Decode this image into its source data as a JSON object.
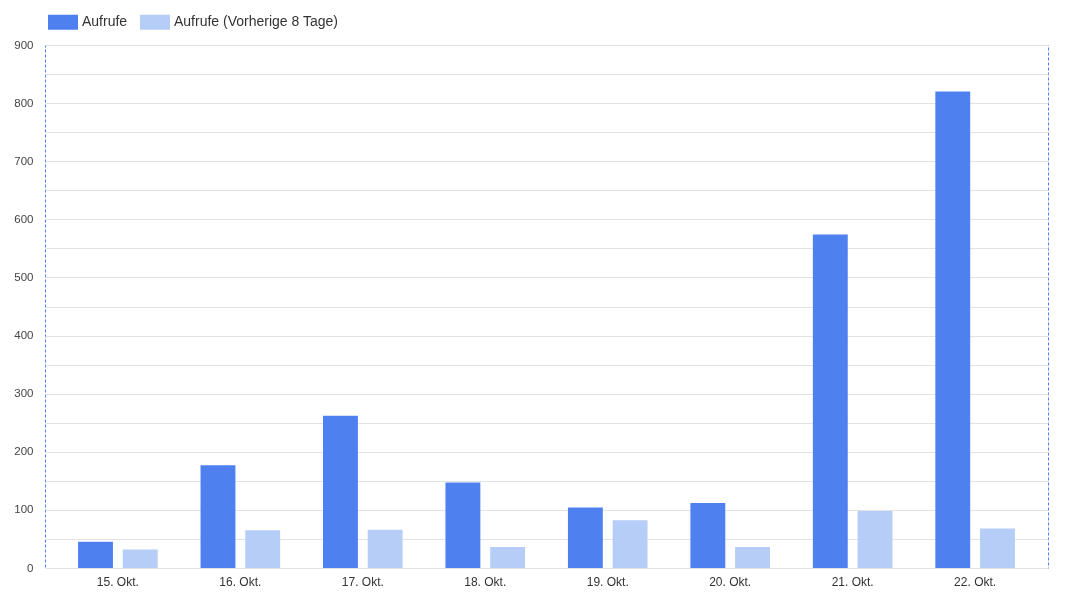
{
  "chart_data": {
    "type": "bar",
    "categories": [
      "15. Okt.",
      "16. Okt.",
      "17. Okt.",
      "18. Okt.",
      "19. Okt.",
      "20. Okt.",
      "21. Okt.",
      "22. Okt."
    ],
    "series": [
      {
        "name": "Aufrufe",
        "color": "#4f80f0",
        "values": [
          45,
          177,
          262,
          147,
          104,
          112,
          574,
          820
        ]
      },
      {
        "name": "Aufrufe (Vorherige 8 Tage)",
        "color": "#b6cdf8",
        "values": [
          32,
          65,
          66,
          36,
          82,
          36,
          98,
          68
        ]
      }
    ],
    "ylim": [
      0,
      900
    ],
    "yticks": [
      0,
      {
        "value": 50,
        "label": null
      },
      100,
      {
        "value": 150,
        "label": null
      },
      200,
      {
        "value": 250,
        "label": null
      },
      300,
      {
        "value": 350,
        "label": null
      },
      400,
      {
        "value": 450,
        "label": null
      },
      500,
      {
        "value": 550,
        "label": null
      },
      600,
      {
        "value": 650,
        "label": null
      },
      700,
      {
        "value": 750,
        "label": null
      },
      800,
      {
        "value": 850,
        "label": null
      },
      900
    ],
    "grid": "y",
    "legend": "top left"
  }
}
